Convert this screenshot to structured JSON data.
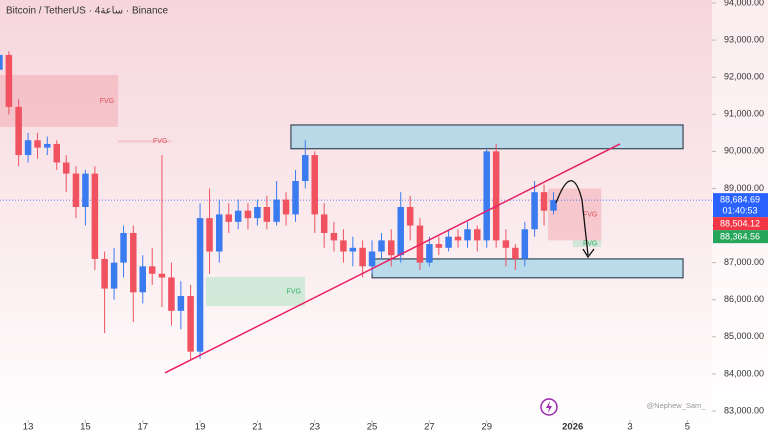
{
  "chart_data": {
    "type": "candlestick",
    "title": "Bitcoin / TetherUS · 4ساعة · Binance",
    "watermark": "@Nephew_Sam_",
    "countdown": "01:40:53",
    "up_color": "#3b7bf0",
    "down_color": "#f0525f",
    "xlim": [
      12.02,
      36.86
    ],
    "ylim": [
      82757,
      94081
    ],
    "xticks": [
      13,
      15,
      17,
      19,
      21,
      23,
      25,
      27,
      29,
      {
        "value": 32,
        "label": "2026"
      },
      {
        "value": 34,
        "label": "3"
      },
      {
        "value": 36,
        "label": "5"
      }
    ],
    "yticks": [
      {
        "value": 83000,
        "label": "83,000.00"
      },
      {
        "value": 84000,
        "label": "84,000.00"
      },
      {
        "value": 85000,
        "label": "85,000.00"
      },
      {
        "value": 86000,
        "label": "86,000.00"
      },
      {
        "value": 87000,
        "label": "87,000.00"
      },
      {
        "value": 88000,
        "label": "88,000.00"
      },
      {
        "value": 89000,
        "label": "89,000.00"
      },
      {
        "value": 90000,
        "label": "90,000.00"
      },
      {
        "value": 91000,
        "label": "91,000.00"
      },
      {
        "value": 92000,
        "label": "92,000.00"
      },
      {
        "value": 93000,
        "label": "93,000.00"
      },
      {
        "value": 94000,
        "label": "94,000.00"
      }
    ],
    "x": [
      12.0,
      12.33,
      12.67,
      13.0,
      13.33,
      13.67,
      14.0,
      14.33,
      14.67,
      15.0,
      15.33,
      15.67,
      16.0,
      16.33,
      16.67,
      17.0,
      17.33,
      17.67,
      18.0,
      18.33,
      18.67,
      19.0,
      19.33,
      19.67,
      20.0,
      20.33,
      20.67,
      21.0,
      21.33,
      21.67,
      22.0,
      22.33,
      22.67,
      23.0,
      23.33,
      23.67,
      24.0,
      24.33,
      24.67,
      25.0,
      25.33,
      25.67,
      26.0,
      26.33,
      26.67,
      27.0,
      27.33,
      27.67,
      28.0,
      28.33,
      28.67,
      29.0,
      29.33,
      29.67,
      30.0,
      30.33,
      30.67,
      31.0,
      31.33
    ],
    "open": [
      92200,
      92600,
      91200,
      89900,
      90300,
      90100,
      90200,
      89700,
      89400,
      88500,
      89400,
      87100,
      86300,
      87000,
      87800,
      86200,
      86900,
      86700,
      86600,
      85700,
      86100,
      84600,
      88200,
      87300,
      88300,
      88100,
      88400,
      88200,
      88500,
      88100,
      88700,
      88300,
      89200,
      89900,
      88300,
      87800,
      87600,
      87300,
      87400,
      86900,
      87300,
      87600,
      87200,
      88500,
      88000,
      87000,
      87500,
      87400,
      87700,
      87600,
      87900,
      87600,
      90000,
      87600,
      87400,
      87100,
      87900,
      88900,
      88400
    ],
    "high": [
      92800,
      92700,
      91400,
      90500,
      90500,
      90400,
      90300,
      89900,
      89600,
      89500,
      89600,
      87300,
      87400,
      88000,
      88000,
      87200,
      87400,
      89900,
      87000,
      86500,
      86400,
      88600,
      89000,
      88700,
      88600,
      88700,
      88600,
      88700,
      88800,
      89200,
      88900,
      89500,
      90300,
      90000,
      88600,
      88100,
      87900,
      87700,
      87600,
      87600,
      87800,
      87900,
      88900,
      88800,
      88200,
      87700,
      87700,
      87900,
      87900,
      88100,
      88000,
      90100,
      90200,
      87900,
      87500,
      88100,
      89200,
      89100,
      88900
    ],
    "low": [
      91800,
      91000,
      89600,
      89700,
      89800,
      89900,
      89500,
      88900,
      88200,
      88000,
      86800,
      85100,
      86000,
      86600,
      85400,
      85900,
      86400,
      85800,
      85300,
      85200,
      84400,
      84400,
      86700,
      87000,
      87800,
      87900,
      87900,
      88000,
      87900,
      88000,
      88000,
      88100,
      89000,
      87800,
      87400,
      87300,
      87000,
      86900,
      86600,
      86700,
      87100,
      86900,
      87000,
      87600,
      86800,
      86900,
      87200,
      87300,
      87400,
      87400,
      87300,
      87400,
      87400,
      86900,
      86800,
      86900,
      87700,
      88000,
      88300
    ],
    "close": [
      92600,
      91200,
      89900,
      90300,
      90100,
      90200,
      89700,
      89400,
      88500,
      89400,
      87100,
      86300,
      87000,
      87800,
      86200,
      86900,
      86700,
      86600,
      85700,
      86100,
      84600,
      88200,
      87300,
      88300,
      88100,
      88400,
      88200,
      88500,
      88100,
      88700,
      88300,
      89200,
      89900,
      88300,
      87800,
      87600,
      87300,
      87400,
      86900,
      87300,
      87600,
      87200,
      88500,
      88000,
      87000,
      87500,
      87400,
      87700,
      87600,
      87900,
      87600,
      90000,
      87600,
      87400,
      87100,
      87900,
      88900,
      88400,
      88685
    ],
    "zones": [
      {
        "x": [
          22.17,
          35.85
        ],
        "y": [
          90070,
          90712
        ]
      },
      {
        "x": [
          25.0,
          35.85
        ],
        "y": [
          86590,
          87100
        ]
      }
    ],
    "fvg": [
      {
        "label": "FVG",
        "color": "#f2a0a8",
        "x": [
          12.02,
          16.14
        ],
        "y": [
          90660,
          92060
        ]
      },
      {
        "label": "FVG",
        "color": "#f2a0a8",
        "x": [
          16.14,
          18.0
        ],
        "y": [
          90240,
          90300
        ]
      },
      {
        "label": "FVG",
        "color": "#9ee0b8",
        "x": [
          19.2,
          22.66
        ],
        "y": [
          85830,
          86610
        ]
      },
      {
        "label": "FVG",
        "color": "#f2a0a8",
        "x": [
          31.14,
          33.0
        ],
        "y": [
          87600,
          89000
        ]
      },
      {
        "label": "FVG",
        "color": "#9ee0b8",
        "x": [
          32.0,
          33.0
        ],
        "y": [
          87420,
          87600
        ]
      }
    ],
    "trendline": {
      "x": [
        17.78,
        33.65
      ],
      "y": [
        84030,
        90200
      ]
    },
    "price_labels": [
      {
        "value": 88684.69,
        "label": "88,684.69",
        "color": "#2962ff"
      },
      {
        "value": 88504.12,
        "label": "88,504.12",
        "color": "#f23645"
      },
      {
        "value": 88364.56,
        "label": "88,364.56",
        "color": "#26a65b"
      }
    ]
  }
}
